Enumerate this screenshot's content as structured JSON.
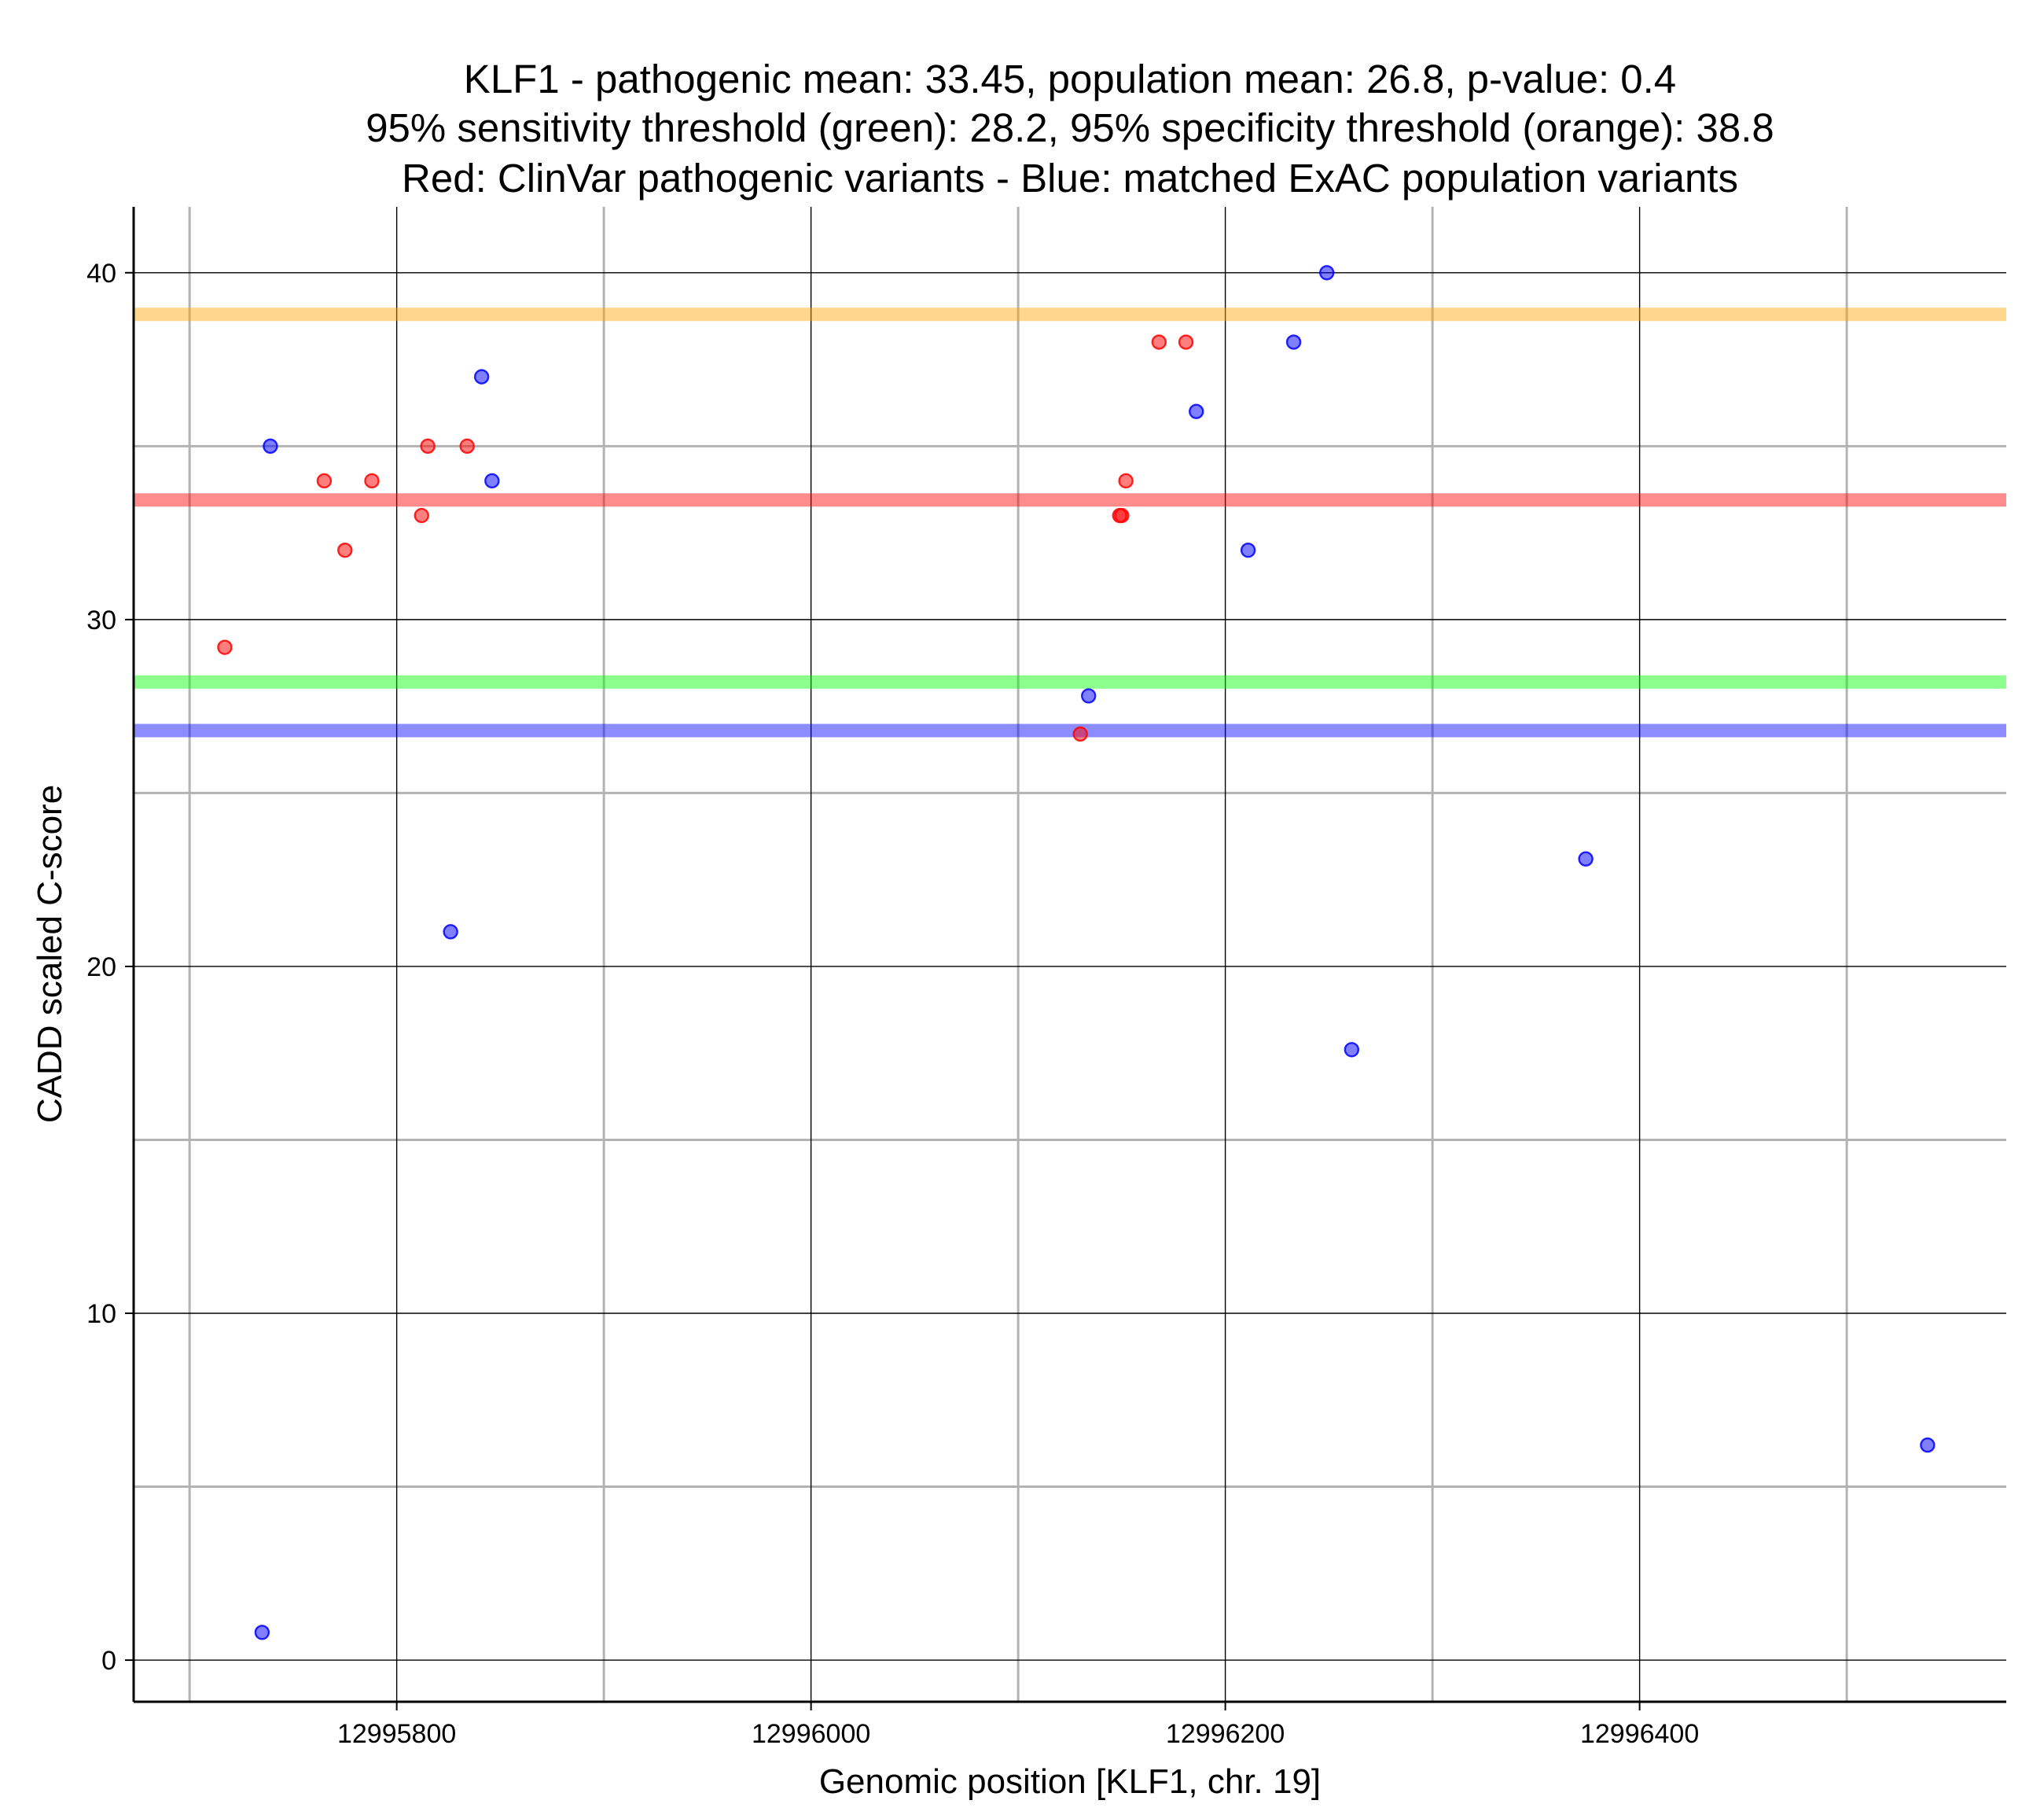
{
  "chart_data": {
    "type": "scatter",
    "title_lines": [
      "KLF1 - pathogenic mean: 33.45, population mean: 26.8, p-value: 0.4",
      "95% sensitivity threshold (green): 28.2, 95% specificity threshold (orange): 38.8",
      "Red: ClinVar pathogenic variants - Blue: matched ExAC population variants"
    ],
    "xlabel": "Genomic position [KLF1, chr. 19]",
    "ylabel": "CADD scaled C-score",
    "xlim": [
      12995673,
      12996577
    ],
    "ylim": [
      -1.2,
      41.9
    ],
    "x_major_ticks": [
      12995800,
      12996000,
      12996200,
      12996400
    ],
    "x_minor_ticks": [
      12995700,
      12995900,
      12996100,
      12996300,
      12996500
    ],
    "y_major_ticks": [
      0,
      10,
      20,
      30,
      40
    ],
    "y_minor_ticks": [
      5,
      15,
      25,
      35
    ],
    "x_tick_labels": [
      "12995800",
      "12996000",
      "12996200",
      "12996400"
    ],
    "y_tick_labels": [
      "0",
      "10",
      "20",
      "30",
      "40"
    ],
    "hlines": [
      {
        "name": "specificity-threshold",
        "value": 38.8,
        "color": "#FFA500"
      },
      {
        "name": "pathogenic-mean",
        "value": 33.45,
        "color": "#FF0000"
      },
      {
        "name": "sensitivity-threshold",
        "value": 28.2,
        "color": "#00FF00"
      },
      {
        "name": "population-mean",
        "value": 26.8,
        "color": "#0000FF"
      }
    ],
    "series": [
      {
        "name": "ClinVar pathogenic variants",
        "color": "#FF0000",
        "points": [
          {
            "x": 12995717,
            "y": 29.2
          },
          {
            "x": 12995765,
            "y": 34
          },
          {
            "x": 12995775,
            "y": 32
          },
          {
            "x": 12995788,
            "y": 34
          },
          {
            "x": 12995812,
            "y": 33
          },
          {
            "x": 12995815,
            "y": 35
          },
          {
            "x": 12995834,
            "y": 35
          },
          {
            "x": 12996130,
            "y": 26.7
          },
          {
            "x": 12996149,
            "y": 33
          },
          {
            "x": 12996150,
            "y": 33
          },
          {
            "x": 12996152,
            "y": 34
          },
          {
            "x": 12996168,
            "y": 38
          },
          {
            "x": 12996181,
            "y": 38
          }
        ]
      },
      {
        "name": "matched ExAC population variants",
        "color": "#0000FF",
        "points": [
          {
            "x": 12995735,
            "y": 0.8
          },
          {
            "x": 12995739,
            "y": 35
          },
          {
            "x": 12995826,
            "y": 21
          },
          {
            "x": 12995841,
            "y": 37
          },
          {
            "x": 12995846,
            "y": 34
          },
          {
            "x": 12996134,
            "y": 27.8
          },
          {
            "x": 12996186,
            "y": 36
          },
          {
            "x": 12996211,
            "y": 32
          },
          {
            "x": 12996233,
            "y": 38
          },
          {
            "x": 12996249,
            "y": 40
          },
          {
            "x": 12996261,
            "y": 17.6
          },
          {
            "x": 12996374,
            "y": 23.1
          },
          {
            "x": 12996539,
            "y": 6.2
          }
        ]
      }
    ]
  }
}
